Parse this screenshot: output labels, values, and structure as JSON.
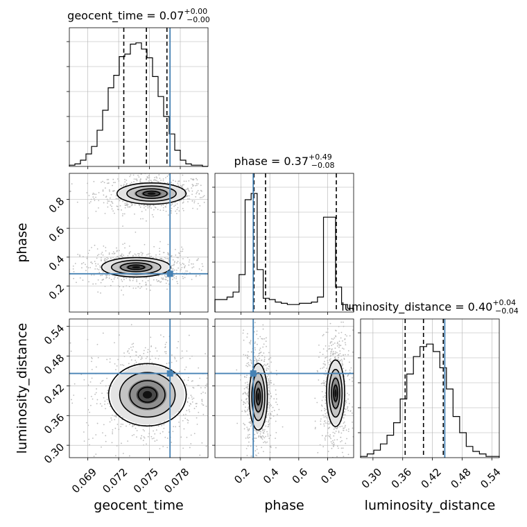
{
  "chart_data": {
    "type": "corner",
    "parameters": [
      "geocent_time",
      "phase",
      "luminosity_distance"
    ],
    "axis_labels": [
      "geocent_time",
      "phase",
      "luminosity_distance"
    ],
    "ranges": {
      "geocent_time": [
        0.0672,
        0.0807
      ],
      "phase": [
        0.02,
        0.98
      ],
      "luminosity_distance": [
        0.275,
        0.555
      ]
    },
    "ticks": {
      "geocent_time": [
        "0.069",
        "0.072",
        "0.075",
        "0.078"
      ],
      "phase": [
        "0.2",
        "0.4",
        "0.6",
        "0.8"
      ],
      "luminosity_distance": [
        "0.30",
        "0.36",
        "0.42",
        "0.48",
        "0.54"
      ]
    },
    "truths": {
      "geocent_time": 0.077,
      "phase": 0.285,
      "luminosity_distance": 0.445
    },
    "titles": [
      {
        "param": "geocent_time",
        "label": "geocent_time",
        "median": "0.07",
        "plus": "+0.00",
        "minus": "−0.00"
      },
      {
        "param": "phase",
        "label": "phase",
        "median": "0.37",
        "plus": "+0.49",
        "minus": "−0.08"
      },
      {
        "param": "luminosity_distance",
        "label": "luminosity_distance",
        "median": "0.40",
        "plus": "+0.04",
        "minus": "−0.04"
      }
    ],
    "quantiles": {
      "geocent_time": [
        0.0725,
        0.0747,
        0.0767
      ],
      "phase": [
        0.29,
        0.37,
        0.86
      ],
      "luminosity_distance": [
        0.365,
        0.402,
        0.442
      ]
    },
    "histograms": {
      "geocent_time": {
        "edges_range": [
          0.0672,
          0.0807
        ],
        "counts": [
          0.01,
          0.02,
          0.05,
          0.1,
          0.16,
          0.29,
          0.45,
          0.63,
          0.73,
          0.88,
          0.9,
          0.98,
          0.99,
          0.94,
          0.87,
          0.72,
          0.56,
          0.4,
          0.26,
          0.13,
          0.05,
          0.02,
          0.01,
          0.01,
          0.0
        ]
      },
      "phase": {
        "edges_range": [
          0.02,
          0.98
        ],
        "counts": [
          0.1,
          0.1,
          0.12,
          0.16,
          0.3,
          0.9,
          0.95,
          0.34,
          0.11,
          0.1,
          0.08,
          0.07,
          0.06,
          0.06,
          0.07,
          0.07,
          0.08,
          0.12,
          0.76,
          0.76,
          0.2,
          0.06,
          0.03
        ]
      },
      "luminosity_distance": {
        "edges_range": [
          0.275,
          0.555
        ],
        "counts": [
          0.01,
          0.03,
          0.06,
          0.11,
          0.18,
          0.28,
          0.47,
          0.67,
          0.81,
          0.89,
          0.91,
          0.85,
          0.72,
          0.55,
          0.33,
          0.2,
          0.09,
          0.05,
          0.03,
          0.01,
          0.01
        ]
      }
    },
    "joint_modes": [
      {
        "x": "geocent_time",
        "y": "phase",
        "modes": [
          {
            "cx": 0.0752,
            "cy": 0.84,
            "sx": 0.0016,
            "sy": 0.035,
            "w": 1.0
          },
          {
            "cx": 0.0737,
            "cy": 0.33,
            "sx": 0.0016,
            "sy": 0.032,
            "w": 1.0
          }
        ]
      },
      {
        "x": "geocent_time",
        "y": "luminosity_distance",
        "modes": [
          {
            "cx": 0.0748,
            "cy": 0.402,
            "sx": 0.0018,
            "sy": 0.03,
            "w": 1.0
          }
        ]
      },
      {
        "x": "phase",
        "y": "luminosity_distance",
        "modes": [
          {
            "cx": 0.32,
            "cy": 0.398,
            "sx": 0.03,
            "sy": 0.032,
            "w": 1.0
          },
          {
            "cx": 0.855,
            "cy": 0.405,
            "sx": 0.03,
            "sy": 0.032,
            "w": 1.0
          }
        ]
      }
    ],
    "grid": true,
    "truth_color": "#4682b4",
    "line_color": "#000000"
  }
}
